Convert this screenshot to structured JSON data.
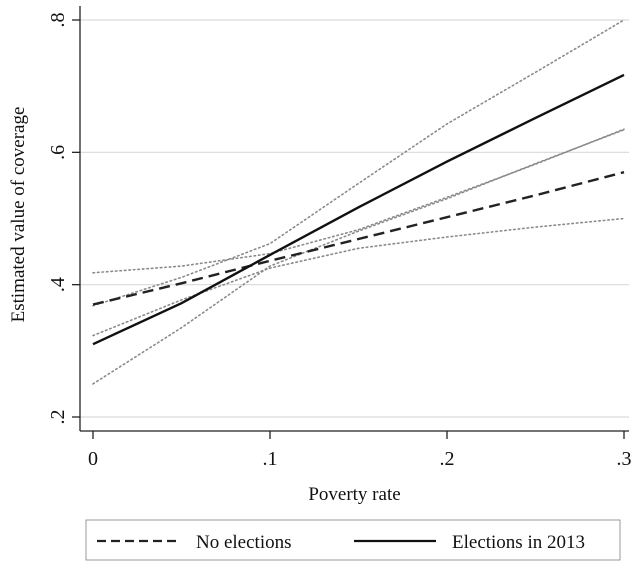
{
  "chart_data": {
    "type": "line",
    "xlabel": "Poverty rate",
    "ylabel": "Estimated value of coverage",
    "xlim": [
      0,
      0.3
    ],
    "ylim": [
      0.2,
      0.8
    ],
    "xticks": [
      0,
      0.1,
      0.2,
      0.3
    ],
    "xtick_labels": [
      "0",
      ".1",
      ".2",
      ".3"
    ],
    "yticks": [
      0.2,
      0.4,
      0.6,
      0.8
    ],
    "ytick_labels": [
      ".2",
      ".4",
      ".6",
      ".8"
    ],
    "grid": "horizontal",
    "legend_position": "bottom",
    "series": [
      {
        "name": "No elections",
        "style": "dashed",
        "color": "#222222",
        "x": [
          0,
          0.05,
          0.1,
          0.15,
          0.2,
          0.25,
          0.3
        ],
        "y": [
          0.37,
          0.402,
          0.436,
          0.469,
          0.502,
          0.535,
          0.57
        ],
        "ci_lower": [
          0.323,
          0.377,
          0.425,
          0.455,
          0.472,
          0.487,
          0.5
        ],
        "ci_upper": [
          0.418,
          0.428,
          0.447,
          0.483,
          0.532,
          0.582,
          0.635
        ]
      },
      {
        "name": "Elections in 2013",
        "style": "solid",
        "color": "#111111",
        "x": [
          0,
          0.05,
          0.1,
          0.15,
          0.2,
          0.25,
          0.3
        ],
        "y": [
          0.31,
          0.372,
          0.445,
          0.517,
          0.586,
          0.652,
          0.717
        ],
        "ci_lower": [
          0.25,
          0.335,
          0.428,
          0.481,
          0.53,
          0.583,
          0.634
        ],
        "ci_upper": [
          0.368,
          0.411,
          0.462,
          0.553,
          0.643,
          0.721,
          0.8
        ]
      }
    ]
  }
}
